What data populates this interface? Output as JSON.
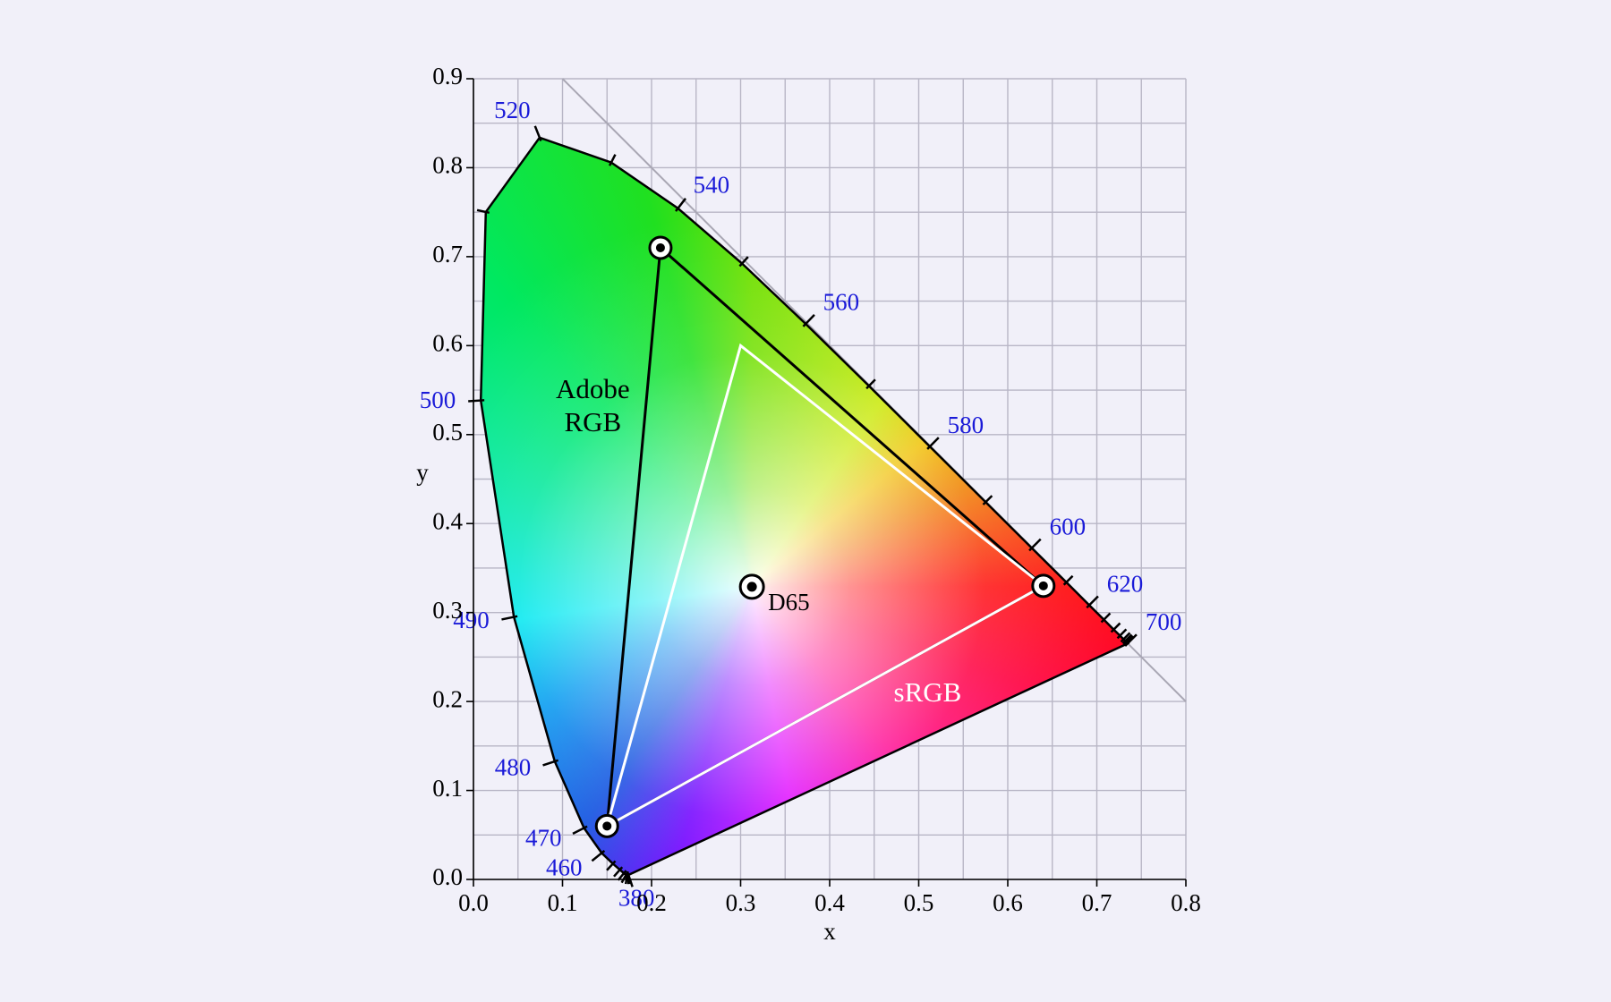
{
  "chart_data": {
    "type": "chromaticity",
    "xlabel": "x",
    "ylabel": "y",
    "xlim": [
      0,
      0.8
    ],
    "ylim": [
      0,
      0.9
    ],
    "xticks": [
      {
        "value": 0,
        "label": "0.0"
      },
      0.1,
      0.2,
      0.3,
      0.4,
      0.5,
      0.6,
      0.7,
      0.8
    ],
    "yticks": [
      {
        "value": 0,
        "label": "0.0"
      },
      0.1,
      0.2,
      0.3,
      0.4,
      0.5,
      0.6,
      0.7,
      0.8,
      0.9
    ],
    "grid": true,
    "spectral_locus": {
      "x": [
        0.1741,
        0.1738,
        0.1733,
        0.1726,
        0.1714,
        0.1689,
        0.1644,
        0.1566,
        0.144,
        0.1241,
        0.0913,
        0.0454,
        0.0082,
        0.0139,
        0.0743,
        0.1547,
        0.2296,
        0.3016,
        0.3731,
        0.4441,
        0.5125,
        0.5752,
        0.627,
        0.6658,
        0.6915,
        0.7079,
        0.719,
        0.726,
        0.73,
        0.732,
        0.7334,
        0.7344,
        0.7347
      ],
      "y": [
        0.005,
        0.0049,
        0.0048,
        0.0048,
        0.0051,
        0.0069,
        0.0109,
        0.0177,
        0.0297,
        0.0578,
        0.1327,
        0.295,
        0.5384,
        0.7502,
        0.8338,
        0.8059,
        0.7543,
        0.6923,
        0.6245,
        0.5547,
        0.4866,
        0.4242,
        0.3725,
        0.334,
        0.3083,
        0.292,
        0.2809,
        0.274,
        0.27,
        0.268,
        0.2666,
        0.2656,
        0.2653
      ],
      "wavelengths": [
        380,
        null,
        null,
        null,
        null,
        null,
        null,
        null,
        460,
        470,
        480,
        490,
        500,
        null,
        520,
        null,
        540,
        null,
        560,
        null,
        580,
        null,
        600,
        null,
        620,
        null,
        null,
        null,
        null,
        null,
        null,
        null,
        700
      ],
      "label_color": "#1a1ad8"
    },
    "gamuts": [
      {
        "name": "Adobe RGB",
        "color": "#000000",
        "markers": true,
        "x": [
          0.64,
          0.21,
          0.15
        ],
        "y": [
          0.33,
          0.71,
          0.06
        ]
      },
      {
        "name": "sRGB",
        "color": "#ffffff",
        "markers": false,
        "x": [
          0.64,
          0.3,
          0.15
        ],
        "y": [
          0.33,
          0.6,
          0.06
        ]
      }
    ],
    "white_point": {
      "name": "D65",
      "x": 0.3127,
      "y": 0.329
    }
  }
}
